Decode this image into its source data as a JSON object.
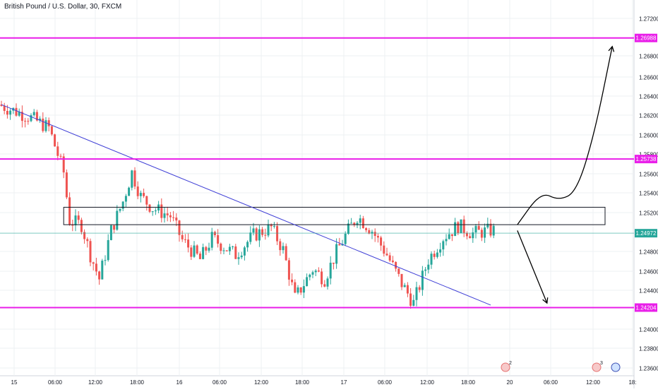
{
  "chart_data": {
    "type": "candlestick",
    "title": "British Pound / U.S. Dollar, 30, FXCM",
    "y_range": [
      1.235,
      1.2738
    ],
    "y_ticks": [
      "1.27200",
      "1.26800",
      "1.26600",
      "1.26400",
      "1.26200",
      "1.26000",
      "1.25800",
      "1.25600",
      "1.25400",
      "1.25200",
      "1.24800",
      "1.24600",
      "1.24400",
      "1.24000",
      "1.23800",
      "1.23600"
    ],
    "x_ticks": [
      "15",
      "06:00",
      "12:00",
      "18:00",
      "16",
      "06:00",
      "12:00",
      "18:00",
      "17",
      "06:00",
      "12:00",
      "18:00",
      "20",
      "06:00",
      "12:00",
      "18:"
    ],
    "price_levels": [
      {
        "label": "1.26988",
        "value": 1.26988,
        "color": "#e91ee9"
      },
      {
        "label": "1.25738",
        "value": 1.25738,
        "color": "#e91ee9"
      },
      {
        "label": "1.24972",
        "value": 1.24972,
        "color": "#26a69a"
      },
      {
        "label": "1.24204",
        "value": 1.24204,
        "color": "#e91ee9"
      }
    ],
    "resistance_zone": {
      "low": 1.2506,
      "high": 1.2524
    },
    "trendline": {
      "start": {
        "bar": 0,
        "price": 1.263
      },
      "end": {
        "bar": 165,
        "price": 1.2423
      }
    },
    "scenario_paths": [
      {
        "name": "bullish",
        "points": [
          [
            174,
            1.2506
          ],
          [
            182,
            1.254
          ],
          [
            188,
            1.2531
          ],
          [
            194,
            1.254
          ],
          [
            200,
            1.26
          ],
          [
            206,
            1.269
          ]
        ]
      },
      {
        "name": "bearish",
        "points": [
          [
            174,
            1.25
          ],
          [
            184,
            1.2425
          ]
        ]
      }
    ],
    "candle_colors": {
      "up": "#26a69a",
      "down": "#ef5350"
    },
    "grid": true,
    "event_badges": [
      {
        "text": "2"
      },
      {
        "text": "3"
      }
    ]
  }
}
